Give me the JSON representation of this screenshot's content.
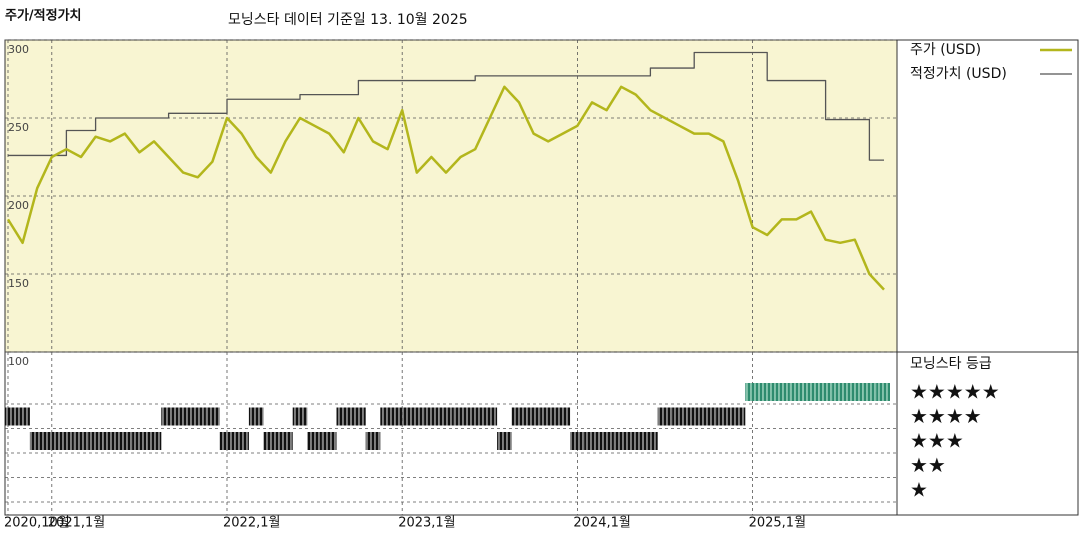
{
  "chart_data": {
    "type": "line",
    "title": "주가/적정가치",
    "subtitle": "모닝스타 데이터 기준일 13. 10월 2025",
    "x": [
      "2020-10",
      "2020-11",
      "2020-12",
      "2021-01",
      "2021-02",
      "2021-03",
      "2021-04",
      "2021-05",
      "2021-06",
      "2021-07",
      "2021-08",
      "2021-09",
      "2021-10",
      "2021-11",
      "2021-12",
      "2022-01",
      "2022-02",
      "2022-03",
      "2022-04",
      "2022-05",
      "2022-06",
      "2022-07",
      "2022-08",
      "2022-09",
      "2022-10",
      "2022-11",
      "2022-12",
      "2023-01",
      "2023-02",
      "2023-03",
      "2023-04",
      "2023-05",
      "2023-06",
      "2023-07",
      "2023-08",
      "2023-09",
      "2023-10",
      "2023-11",
      "2023-12",
      "2024-01",
      "2024-02",
      "2024-03",
      "2024-04",
      "2024-05",
      "2024-06",
      "2024-07",
      "2024-08",
      "2024-09",
      "2024-10",
      "2024-11",
      "2024-12",
      "2025-01",
      "2025-02",
      "2025-03",
      "2025-04",
      "2025-05",
      "2025-06",
      "2025-07",
      "2025-08",
      "2025-09",
      "2025-10"
    ],
    "xticks": [
      {
        "value": "2020-10",
        "label": "2020,10월"
      },
      {
        "value": "2021-01",
        "label": "2021,1월"
      },
      {
        "value": "2022-01",
        "label": "2022,1월"
      },
      {
        "value": "2023-01",
        "label": "2023,1월"
      },
      {
        "value": "2024-01",
        "label": "2024,1월"
      },
      {
        "value": "2025-01",
        "label": "2025,1월"
      }
    ],
    "series": [
      {
        "name": "주가 (USD)",
        "color": "#b3b61c",
        "values": [
          185,
          170,
          205,
          225,
          230,
          225,
          238,
          235,
          240,
          228,
          235,
          225,
          215,
          212,
          222,
          250,
          240,
          225,
          215,
          235,
          250,
          245,
          240,
          228,
          250,
          235,
          230,
          255,
          215,
          225,
          215,
          225,
          230,
          250,
          270,
          260,
          240,
          235,
          240,
          245,
          260,
          255,
          270,
          265,
          255,
          250,
          245,
          240,
          240,
          235,
          210,
          180,
          175,
          185,
          185,
          190,
          172,
          170,
          172,
          150,
          140
        ]
      },
      {
        "name": "적정가치 (USD)",
        "color": "#555555",
        "step": true,
        "values": [
          226,
          226,
          226,
          226,
          242,
          242,
          250,
          250,
          250,
          250,
          250,
          253,
          253,
          253,
          253,
          262,
          262,
          262,
          262,
          262,
          265,
          265,
          265,
          265,
          274,
          274,
          274,
          274,
          274,
          274,
          274,
          274,
          277,
          277,
          277,
          277,
          277,
          277,
          277,
          277,
          277,
          277,
          277,
          277,
          282,
          282,
          282,
          292,
          292,
          292,
          292,
          292,
          274,
          274,
          274,
          274,
          249,
          249,
          249,
          223,
          223
        ]
      }
    ],
    "ylim": [
      100,
      300
    ],
    "yticks": [
      100,
      150,
      200,
      250,
      300
    ],
    "grid": true,
    "rating": {
      "title": "모닝스타 등급",
      "values": [
        4,
        4,
        3,
        3,
        3,
        3,
        3,
        3,
        3,
        3,
        3,
        4,
        4,
        4,
        4,
        3,
        3,
        4,
        3,
        3,
        4,
        3,
        3,
        4,
        4,
        3,
        4,
        4,
        4,
        4,
        4,
        4,
        4,
        4,
        3,
        4,
        4,
        4,
        4,
        3,
        3,
        3,
        3,
        3,
        3,
        4,
        4,
        4,
        4,
        4,
        4,
        5,
        5,
        5,
        5,
        5,
        5,
        5,
        5,
        5,
        5
      ],
      "ticks": [
        {
          "value": 5,
          "label": "★★★★★"
        },
        {
          "value": 4,
          "label": "★★★★"
        },
        {
          "value": 3,
          "label": "★★★"
        },
        {
          "value": 2,
          "label": "★★"
        },
        {
          "value": 1,
          "label": "★"
        }
      ],
      "color": "#111111",
      "top_color": "#2e8b6e"
    }
  }
}
